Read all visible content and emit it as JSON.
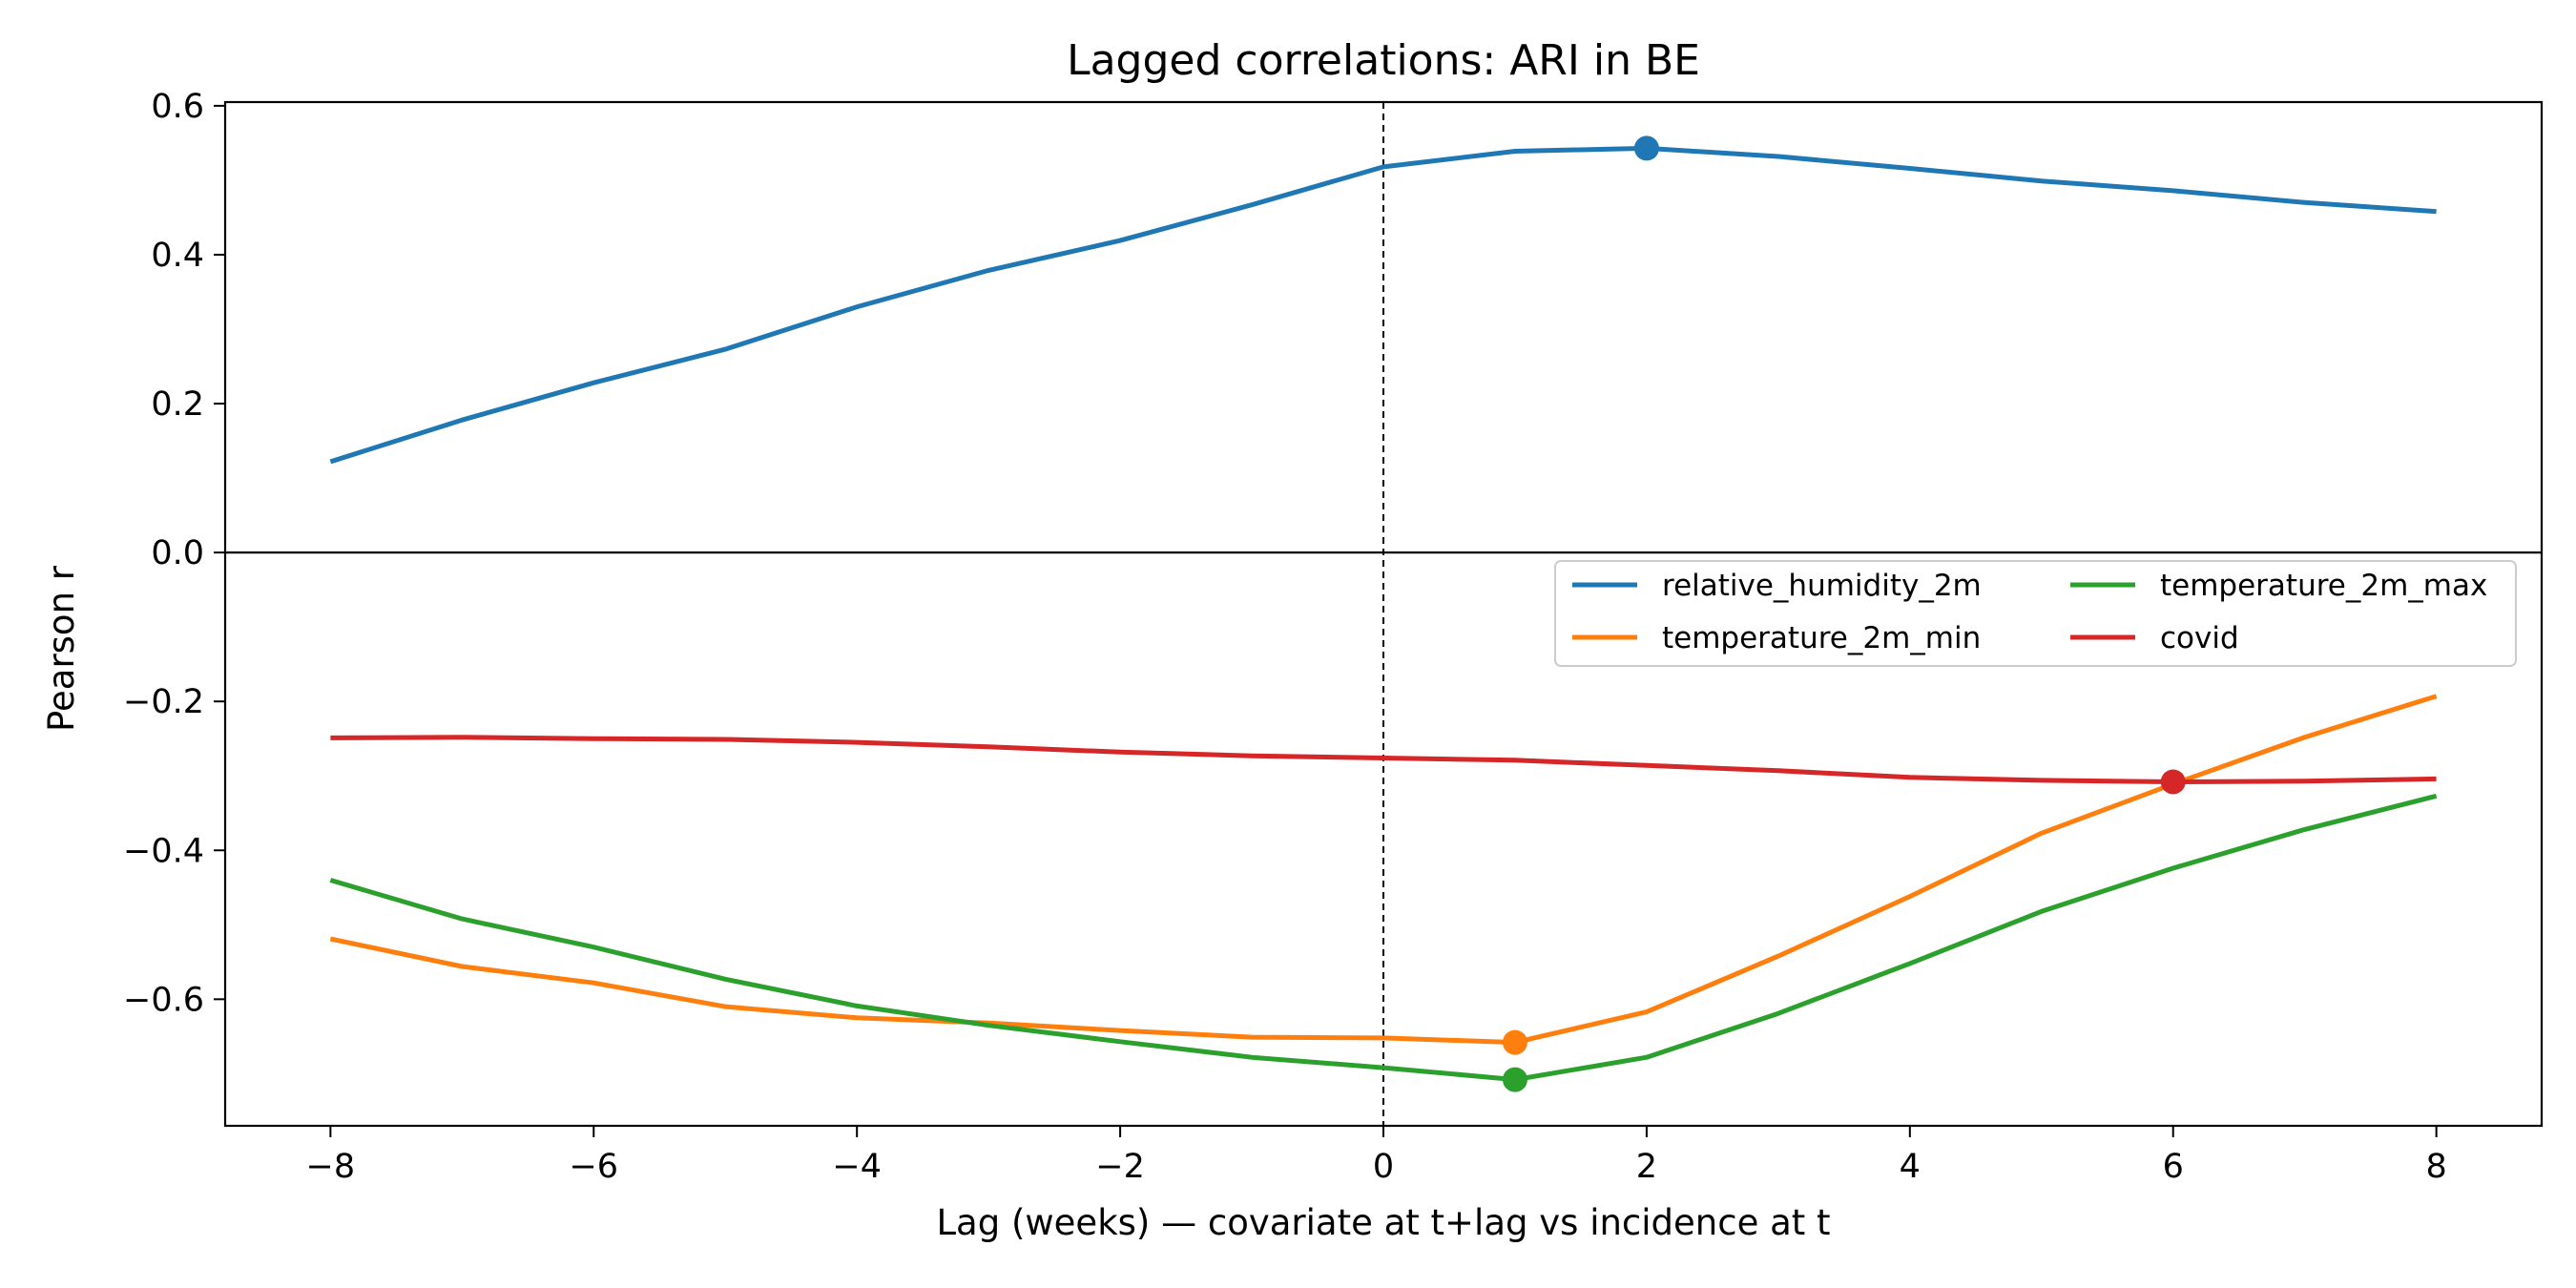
{
  "chart_data": {
    "type": "line",
    "title": "Lagged correlations: ARI in BE",
    "xlabel": "Lag (weeks) — covariate at t+lag vs incidence at t",
    "ylabel": "Pearson r",
    "xlim": [
      -8.8,
      8.8
    ],
    "ylim": [
      -0.77,
      0.605
    ],
    "x_ticks": [
      -8,
      -6,
      -4,
      -2,
      0,
      2,
      4,
      6,
      8
    ],
    "x_tick_labels": [
      "−8",
      "−6",
      "−4",
      "−2",
      "0",
      "2",
      "4",
      "6",
      "8"
    ],
    "y_ticks": [
      0.6,
      0.4,
      0.2,
      0.0,
      -0.2,
      -0.4,
      -0.6
    ],
    "y_tick_labels": [
      "0.6",
      "0.4",
      "0.2",
      "0.0",
      "−0.2",
      "−0.4",
      "−0.6"
    ],
    "grid": false,
    "reference_lines": {
      "horizontal_zero": true,
      "vertical_zero_dashed": true
    },
    "legend": {
      "placement": "center-right",
      "columns": 2
    },
    "x": [
      -8,
      -7,
      -6,
      -5,
      -4,
      -3,
      -2,
      -1,
      0,
      1,
      2,
      3,
      4,
      5,
      6,
      7,
      8
    ],
    "series": [
      {
        "name": "relative_humidity_2m",
        "color": "#1f77b4",
        "values": [
          0.122,
          0.178,
          0.228,
          0.273,
          0.33,
          0.379,
          0.419,
          0.467,
          0.518,
          0.539,
          0.543,
          0.532,
          0.516,
          0.499,
          0.486,
          0.47,
          0.458
        ],
        "peak": {
          "x": 2,
          "y": 0.543
        }
      },
      {
        "name": "temperature_2m_min",
        "color": "#ff7f0e",
        "values": [
          -0.519,
          -0.556,
          -0.578,
          -0.61,
          -0.625,
          -0.632,
          -0.642,
          -0.651,
          -0.652,
          -0.658,
          -0.617,
          -0.542,
          -0.462,
          -0.377,
          -0.311,
          -0.248,
          -0.193
        ],
        "peak": {
          "x": 1,
          "y": -0.658
        }
      },
      {
        "name": "temperature_2m_max",
        "color": "#2ca02c",
        "values": [
          -0.44,
          -0.492,
          -0.53,
          -0.573,
          -0.609,
          -0.635,
          -0.657,
          -0.678,
          -0.692,
          -0.708,
          -0.678,
          -0.619,
          -0.552,
          -0.482,
          -0.424,
          -0.372,
          -0.327
        ],
        "peak": {
          "x": 1,
          "y": -0.708
        }
      },
      {
        "name": "covid",
        "color": "#d62728",
        "values": [
          -0.249,
          -0.248,
          -0.25,
          -0.251,
          -0.255,
          -0.261,
          -0.268,
          -0.273,
          -0.276,
          -0.279,
          -0.286,
          -0.293,
          -0.302,
          -0.306,
          -0.308,
          -0.307,
          -0.304
        ],
        "peak": {
          "x": 6,
          "y": -0.308
        }
      }
    ]
  }
}
